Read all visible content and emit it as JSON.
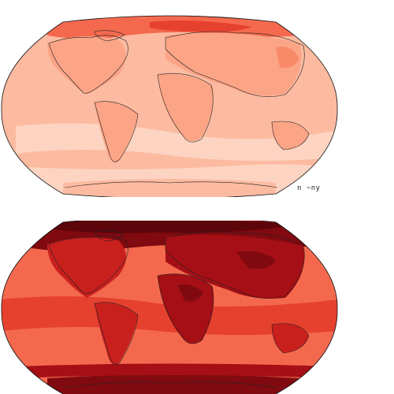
{
  "maps": [
    {
      "id": "top",
      "projection": "robinson",
      "palette": [
        "#fdd4c2",
        "#fcbba1",
        "#fca486",
        "#f88a6a",
        "#f4694e",
        "#e6412f"
      ]
    },
    {
      "id": "bottom",
      "projection": "robinson",
      "palette": [
        "#f4694e",
        "#e6412f",
        "#c9201e",
        "#a50f15",
        "#800a10",
        "#5c050b"
      ]
    }
  ],
  "corner_label": "n ~ny"
}
